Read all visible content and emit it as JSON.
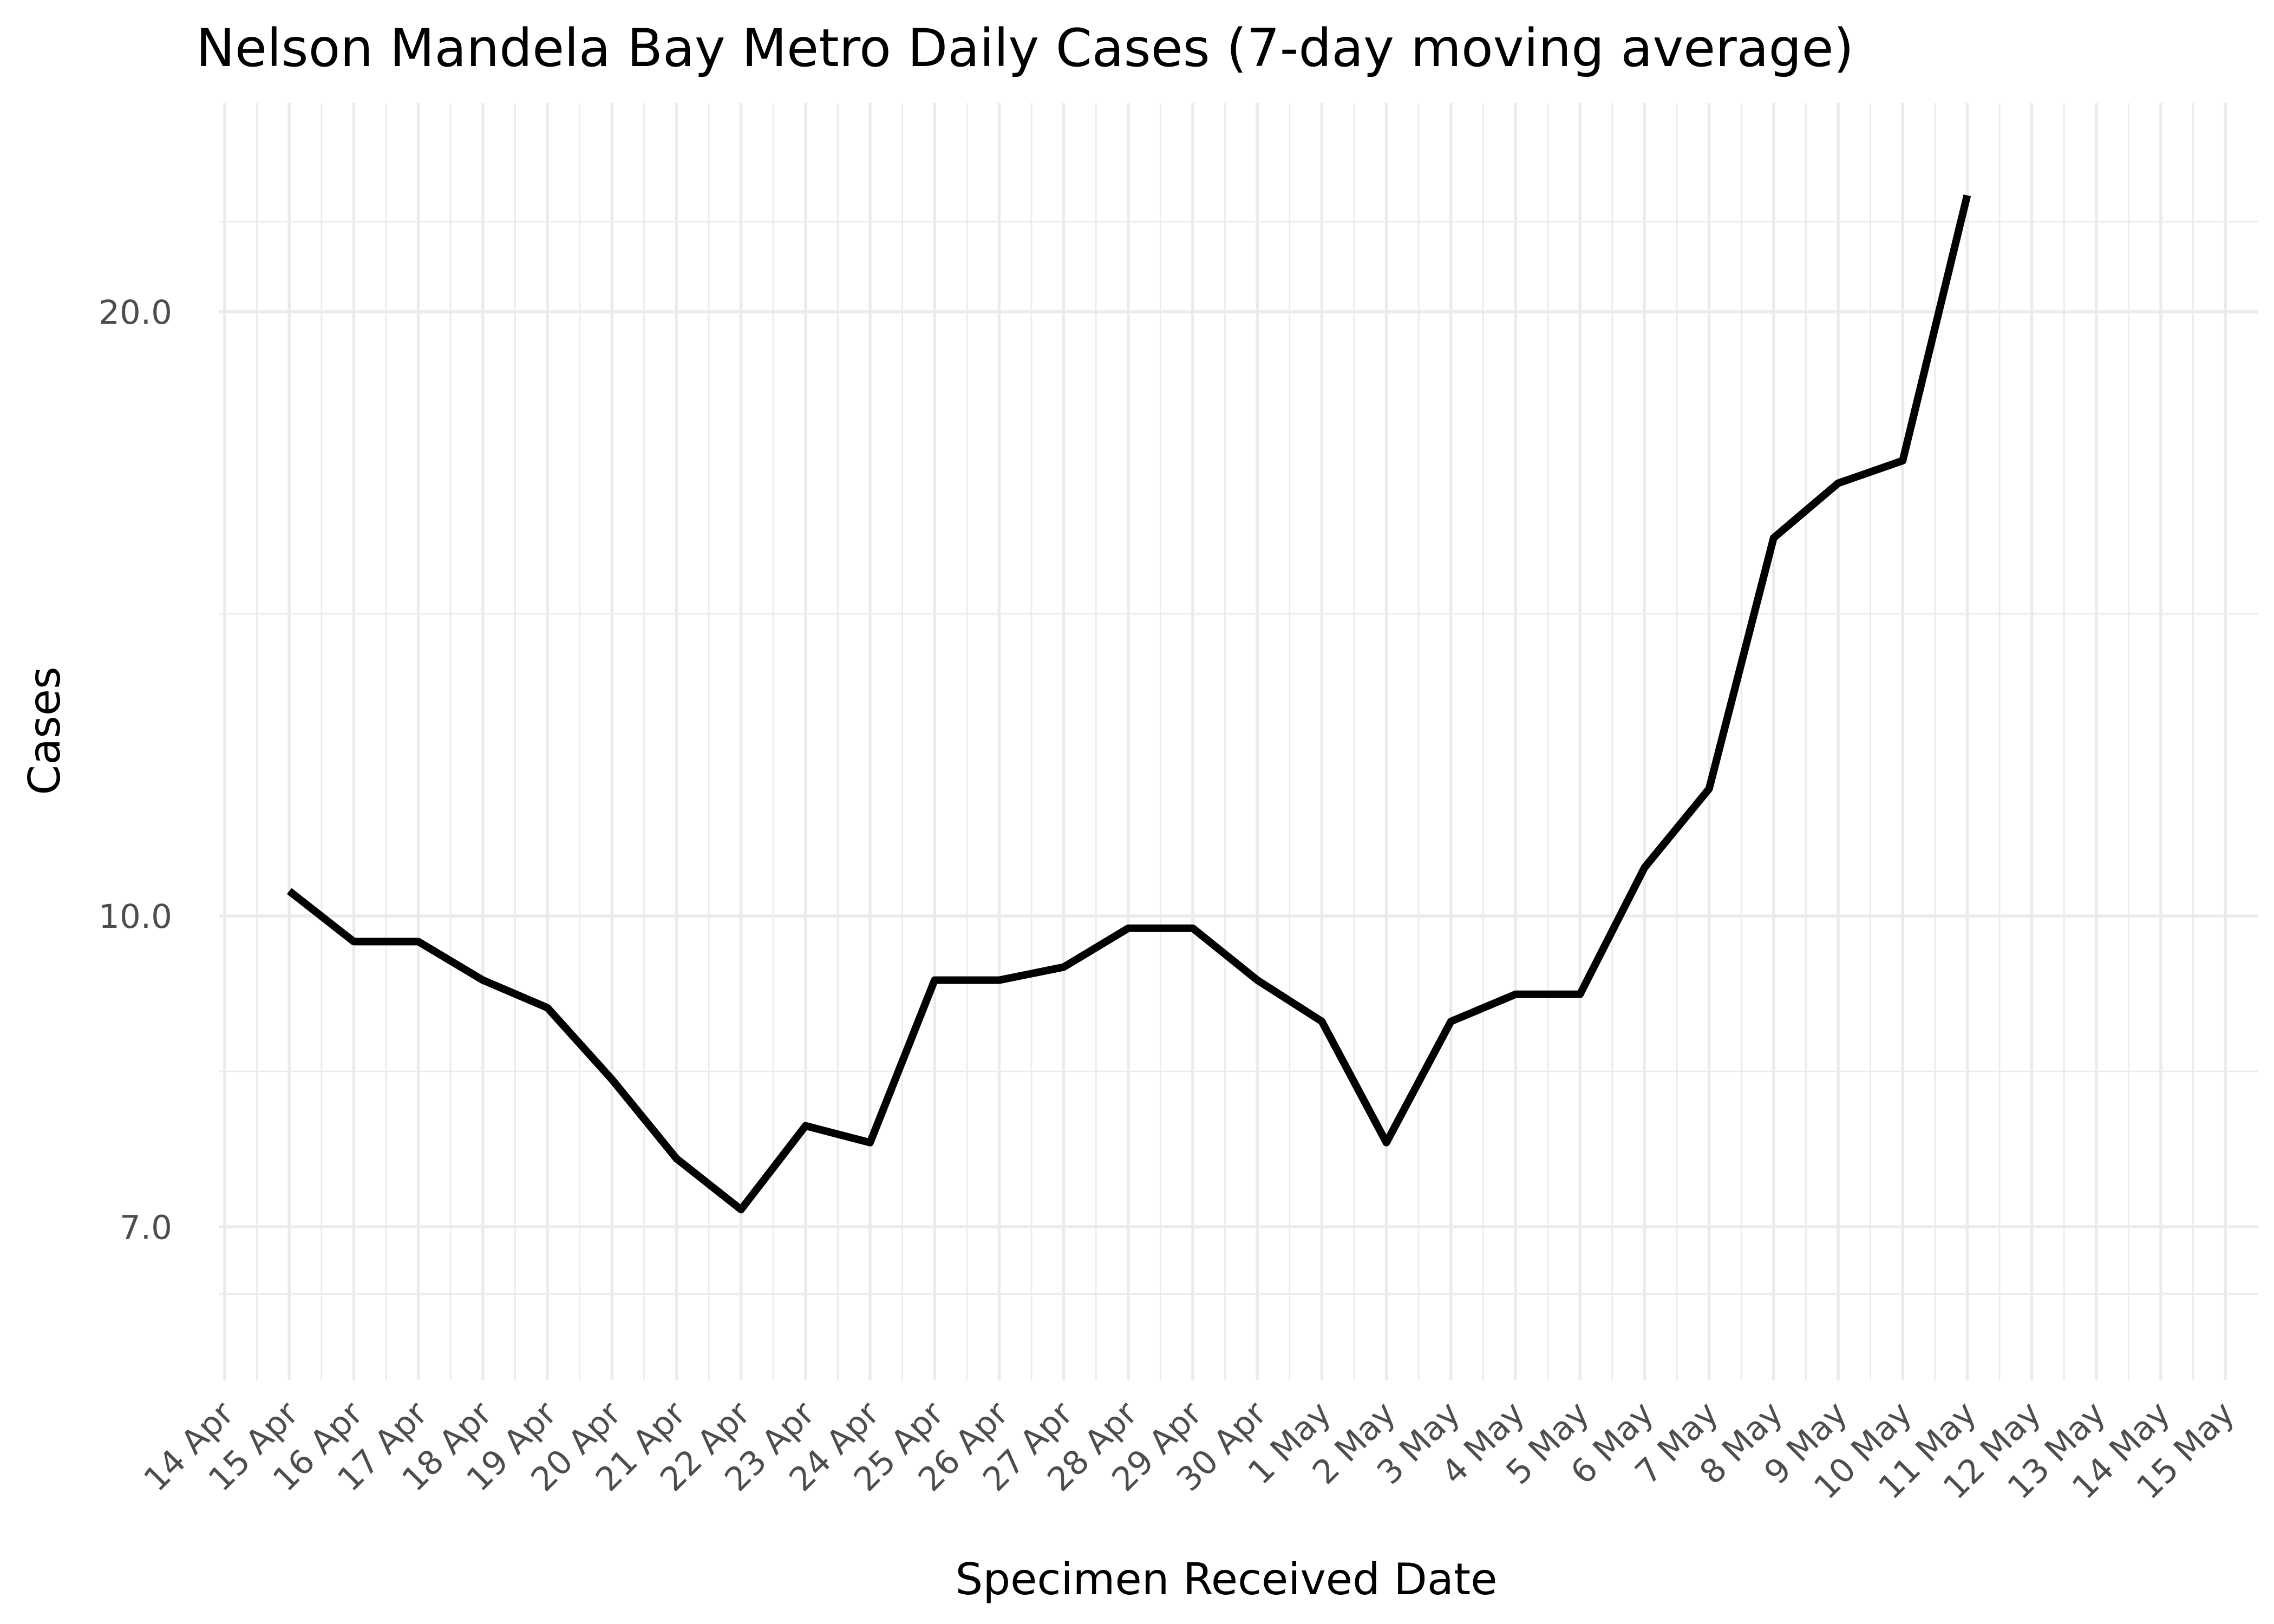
{
  "chart_data": {
    "type": "line",
    "title": "Nelson Mandela Bay Metro Daily Cases (7-day moving average)",
    "xlabel": "Specimen Received Date",
    "ylabel": "Cases",
    "y_scale": "log",
    "ylim": [
      6.0,
      24.6
    ],
    "y_ticks": [
      7.0,
      10.0,
      20.0
    ],
    "y_tick_labels": [
      "7.0",
      "10.0",
      "20.0"
    ],
    "x_tick_labels": [
      "14 Apr",
      "15 Apr",
      "16 Apr",
      "17 Apr",
      "18 Apr",
      "19 Apr",
      "20 Apr",
      "21 Apr",
      "22 Apr",
      "23 Apr",
      "24 Apr",
      "25 Apr",
      "26 Apr",
      "27 Apr",
      "28 Apr",
      "29 Apr",
      "30 Apr",
      "1 May",
      "2 May",
      "3 May",
      "4 May",
      "5 May",
      "6 May",
      "7 May",
      "8 May",
      "9 May",
      "10 May",
      "11 May",
      "12 May",
      "13 May",
      "14 May",
      "15 May"
    ],
    "grid": true,
    "series": [
      {
        "color": "#000000",
        "x": [
          "15 Apr",
          "16 Apr",
          "17 Apr",
          "18 Apr",
          "19 Apr",
          "20 Apr",
          "21 Apr",
          "22 Apr",
          "23 Apr",
          "24 Apr",
          "25 Apr",
          "26 Apr",
          "27 Apr",
          "28 Apr",
          "29 Apr",
          "30 Apr",
          "1 May",
          "2 May",
          "3 May",
          "4 May",
          "5 May",
          "6 May",
          "7 May",
          "8 May",
          "9 May",
          "10 May",
          "11 May"
        ],
        "values": [
          10.29,
          9.71,
          9.71,
          9.29,
          9.0,
          8.29,
          7.57,
          7.14,
          7.86,
          7.71,
          9.29,
          9.29,
          9.43,
          9.86,
          9.86,
          9.29,
          8.86,
          7.71,
          8.86,
          9.14,
          9.14,
          10.57,
          11.57,
          15.43,
          16.43,
          16.86,
          22.86
        ]
      }
    ]
  }
}
